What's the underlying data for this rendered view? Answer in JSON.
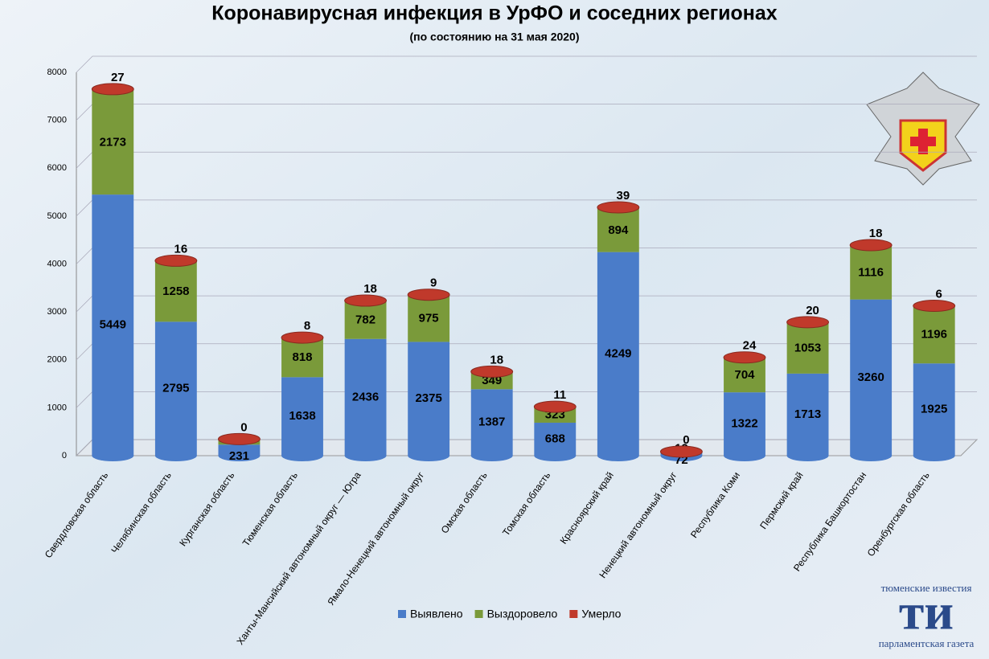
{
  "chart_data": {
    "type": "stacked-bar",
    "title": "Коронавирусная инфекция в УрФО и соседних регионах",
    "subtitle": "(по состоянию на 31 мая 2020)",
    "categories": [
      "Свердловская область",
      "Челябинская область",
      "Курганская область",
      "Тюменская область",
      "Ханты-Мансийский автономный округ — Югра",
      "Ямало-Ненецкий автономный округ",
      "Омская область",
      "Томская область",
      "Красноярский край",
      "Ненецкий автономный округ",
      "Республика Коми",
      "Пермский край",
      "Республика Башкортостан",
      "Оренбургская область"
    ],
    "series": [
      {
        "name": "Выявлено",
        "color": "#4a7cc9",
        "values": [
          5449,
          2795,
          231,
          1638,
          2436,
          2375,
          1387,
          688,
          4249,
          72,
          1322,
          1713,
          3260,
          1925
        ]
      },
      {
        "name": "Выздоровело",
        "color": "#7a9a3a",
        "values": [
          2173,
          1258,
          115,
          818,
          782,
          975,
          349,
          323,
          894,
          12,
          704,
          1053,
          1116,
          1196
        ]
      },
      {
        "name": "Умерло",
        "color": "#c0392b",
        "values": [
          27,
          16,
          0,
          8,
          18,
          9,
          18,
          11,
          39,
          0,
          24,
          20,
          18,
          6
        ]
      }
    ],
    "ylim": [
      0,
      8000
    ],
    "yticks": [
      0,
      1000,
      2000,
      3000,
      4000,
      5000,
      6000,
      7000,
      8000
    ],
    "grid": true,
    "legend": "bottom"
  },
  "logo": {
    "top": "тюменские известия",
    "mark": "ти",
    "bottom": "парламентская газета"
  }
}
